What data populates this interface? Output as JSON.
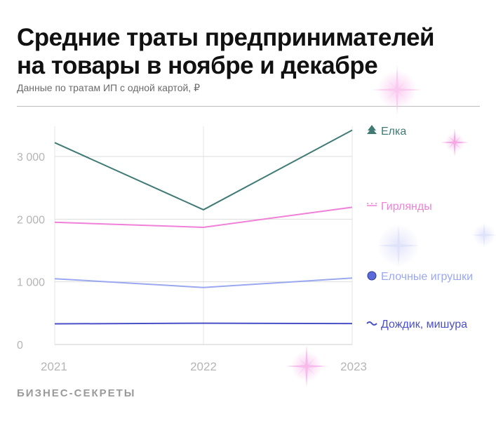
{
  "title_line1": "Средние траты предпринимателей",
  "title_line2": "на товары в ноябре и декабре",
  "subtitle": "Данные по тратам ИП с одной картой, ₽",
  "brand": "БИЗНЕС-СЕКРЕТЫ",
  "chart_data": {
    "type": "line",
    "title": "Средние траты предпринимателей на товары в ноябре и декабре",
    "subtitle": "Данные по тратам ИП с одной картой, ₽",
    "x": [
      "2021",
      "2022",
      "2023"
    ],
    "y_ticks": [
      0,
      1000,
      2000,
      3000
    ],
    "y_tick_labels": [
      "0",
      "1 000",
      "2 000",
      "3 000"
    ],
    "ylim": [
      0,
      3500
    ],
    "grid": true,
    "legend": "right, inline at line ends",
    "series": [
      {
        "name": "Елка",
        "values": [
          3220,
          2150,
          3420
        ],
        "color": "#3f7b74",
        "icon": "tree-icon"
      },
      {
        "name": "Гирлянды",
        "values": [
          1950,
          1870,
          2190
        ],
        "color": "#f080d8",
        "icon": "garland-icon"
      },
      {
        "name": "Елочные игрушки",
        "values": [
          1050,
          910,
          1060
        ],
        "color": "#9aa8f0",
        "icon": "ornament-ball-icon"
      },
      {
        "name": "Дождик, мишура",
        "values": [
          330,
          340,
          335
        ],
        "color": "#4a50c8",
        "icon": "tinsel-icon"
      }
    ]
  }
}
